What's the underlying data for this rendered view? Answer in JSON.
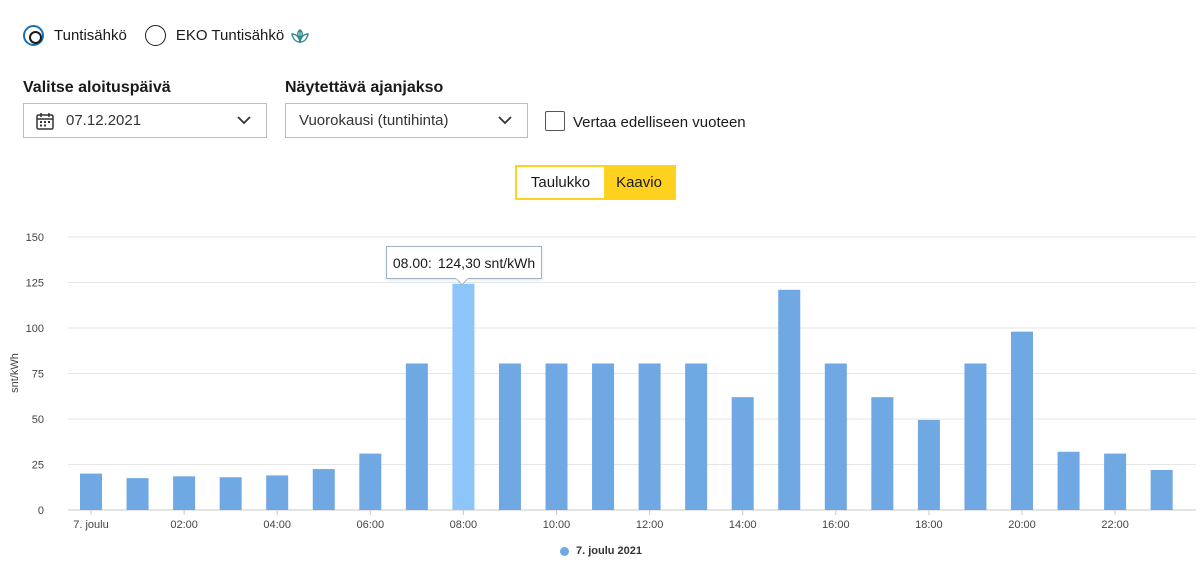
{
  "tariff": {
    "options": [
      {
        "label": "Tuntisähkö",
        "selected": true
      },
      {
        "label": "EKO Tuntisähkö",
        "selected": false,
        "icon": "leaf-icon"
      }
    ]
  },
  "filters": {
    "start_date_label": "Valitse aloituspäivä",
    "start_date_value": "07.12.2021",
    "period_label": "Näytettävä ajanjakso",
    "period_value": "Vuorokausi (tuntihinta)",
    "compare_label": "Vertaa edelliseen vuoteen"
  },
  "view_toggle": {
    "table_label": "Taulukko",
    "chart_label": "Kaavio",
    "active": "chart"
  },
  "tooltip": {
    "time": "08.00:",
    "value": "124,30 snt/kWh"
  },
  "colors": {
    "bar": "#6fa8e3",
    "bar_highlight": "#8cc5f8",
    "accent": "#ffd21f",
    "legend_dot": "#6fa8e3"
  },
  "chart_data": {
    "type": "bar",
    "ylabel": "snt/kWh",
    "ylim": [
      0,
      150
    ],
    "yticks": [
      "0",
      "25",
      "50",
      "75",
      "100",
      "125",
      "150"
    ],
    "x_tick_labels": [
      "7. joulu",
      "02:00",
      "04:00",
      "06:00",
      "08:00",
      "10:00",
      "12:00",
      "14:00",
      "16:00",
      "18:00",
      "20:00",
      "22:00"
    ],
    "hours": [
      0,
      1,
      2,
      3,
      4,
      5,
      6,
      7,
      8,
      9,
      10,
      11,
      12,
      13,
      14,
      15,
      16,
      17,
      18,
      19,
      20,
      21,
      22,
      23
    ],
    "series": [
      {
        "name": "7. joulu 2021",
        "values": [
          20,
          17.5,
          18.5,
          18,
          19,
          22.5,
          31,
          80.5,
          124.3,
          80.5,
          80.5,
          80.5,
          80.5,
          80.5,
          62,
          121,
          80.5,
          62,
          49.5,
          80.5,
          98,
          32,
          31,
          22
        ]
      }
    ],
    "highlight_index": 8,
    "grid": true,
    "legend": "bottom"
  }
}
